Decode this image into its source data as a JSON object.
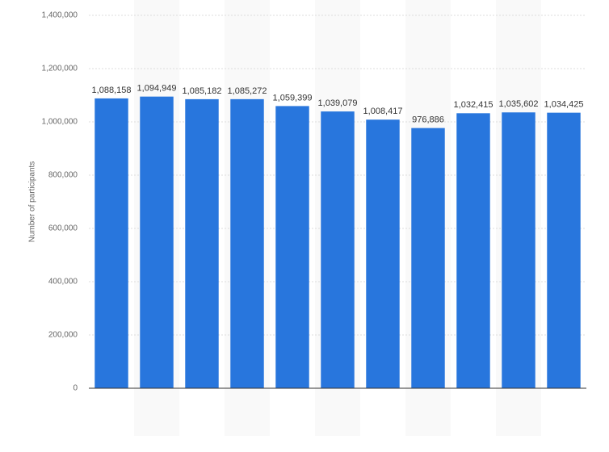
{
  "chart_data": {
    "type": "bar",
    "y_label": "Number of participants",
    "categories": [
      null,
      null,
      null,
      null,
      null,
      null,
      null,
      null,
      null,
      null,
      null
    ],
    "values": [
      1088158,
      1094949,
      1085182,
      1085272,
      1059399,
      1039079,
      1008417,
      976886,
      1032415,
      1035602,
      1034425
    ],
    "value_labels": [
      "1,088,158",
      "1,094,949",
      "1,085,182",
      "1,085,272",
      "1,059,399",
      "1,039,079",
      "1,008,417",
      "976,886",
      "1,032,415",
      "1,035,602",
      "1,034,425"
    ],
    "color": "#2876dd",
    "ylim": [
      0,
      1400000
    ],
    "yticks": [
      0,
      {
        "value": 200000,
        "label": "200,000"
      },
      {
        "value": 400000,
        "label": "400,000"
      },
      {
        "value": 600000,
        "label": "600,000"
      },
      {
        "value": 800000,
        "label": "800,000"
      },
      {
        "value": 1000000,
        "label": "1,000,000"
      },
      {
        "value": 1200000,
        "label": "1,200,000"
      },
      {
        "value": 1400000,
        "label": "1,400,000"
      }
    ],
    "grid": true
  }
}
